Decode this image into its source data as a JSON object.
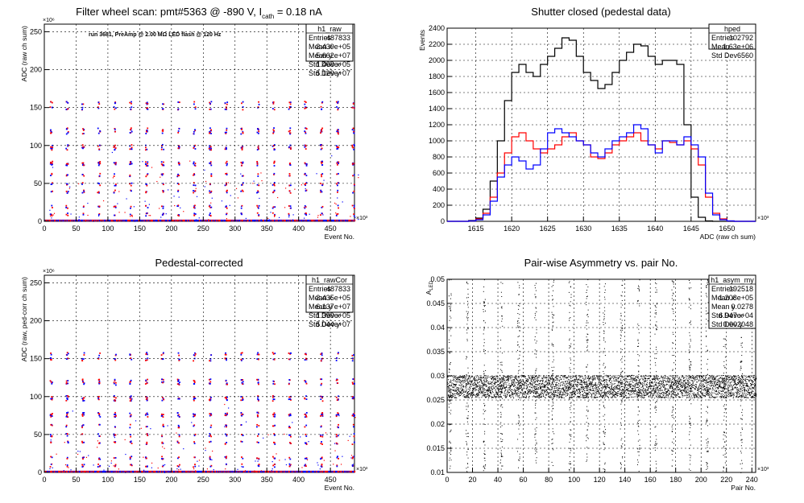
{
  "chart_data": [
    {
      "type": "scatter",
      "title": "Filter wheel scan: pmt#5363 @  -890 V, I",
      "title_sub": "cath",
      "title_tail": " = 0.18 nA",
      "annotation": "run 3681, PreAmp @ 2.00 MΩ LED flash @  120 Hz",
      "xlabel": "Event No.",
      "ylabel": "ADC (raw ch sum)",
      "xlim": [
        0,
        487833
      ],
      "ylim": [
        0,
        260000000
      ],
      "x_exponent": "×10³",
      "y_exponent": "×10⁶",
      "xticks": [
        "0",
        "50",
        "100",
        "150",
        "200",
        "250",
        "300",
        "350",
        "400",
        "450"
      ],
      "yticks": [
        "0",
        "50",
        "100",
        "150",
        "200",
        "250"
      ],
      "grid": true,
      "stats": {
        "name": "h1_raw",
        "rows": [
          [
            "Entries",
            "487833"
          ],
          [
            "Mean x",
            "2.439e+05"
          ],
          [
            "Mean y",
            "5.662e+07"
          ],
          [
            "Std Dev x",
            "1.408e+05"
          ],
          [
            "Std Dev y",
            "5.129e+07"
          ]
        ]
      },
      "levels": [
        157,
        150,
        122,
        118,
        100,
        97,
        78,
        76,
        62,
        50,
        40,
        20,
        10
      ],
      "period": 25000,
      "colors": [
        "#ff0000",
        "#0000ff"
      ]
    },
    {
      "type": "line",
      "title": "Shutter closed (pedestal data)",
      "xlabel": "ADC (raw ch sum)",
      "ylabel": "Events",
      "xlim": [
        1611,
        1654
      ],
      "ylim": [
        0,
        2400
      ],
      "x_exponent": "×10³",
      "xticks": [
        "1615",
        "1620",
        "1625",
        "1630",
        "1635",
        "1640",
        "1645",
        "1650"
      ],
      "yticks": [
        "0",
        "200",
        "400",
        "600",
        "800",
        "1000",
        "1200",
        "1400",
        "1600",
        "1800",
        "2000",
        "2200",
        "2400"
      ],
      "grid": true,
      "stats": {
        "name": "hped",
        "rows": [
          [
            "Entries",
            "102792"
          ],
          [
            "Mean",
            "1.63e+06"
          ],
          [
            "Std Dev",
            "6560"
          ]
        ]
      },
      "x": [
        1611,
        1612,
        1613,
        1614,
        1615,
        1616,
        1617,
        1618,
        1619,
        1620,
        1621,
        1622,
        1623,
        1624,
        1625,
        1626,
        1627,
        1628,
        1629,
        1630,
        1631,
        1632,
        1633,
        1634,
        1635,
        1636,
        1637,
        1638,
        1639,
        1640,
        1641,
        1642,
        1643,
        1644,
        1645,
        1646,
        1647,
        1648,
        1649,
        1650,
        1651,
        1652,
        1653,
        1654
      ],
      "series": [
        {
          "color": "#000000",
          "values": [
            0,
            0,
            0,
            10,
            40,
            150,
            500,
            1000,
            1500,
            1850,
            1950,
            1850,
            1800,
            1950,
            2050,
            2150,
            2280,
            2250,
            2050,
            1850,
            1750,
            1650,
            1700,
            1850,
            2000,
            2100,
            2200,
            2180,
            2050,
            1950,
            2000,
            2000,
            1950,
            1200,
            300,
            50,
            5,
            0,
            0,
            0,
            0,
            0,
            0,
            0
          ]
        },
        {
          "color": "#ff0000",
          "values": [
            0,
            0,
            0,
            5,
            30,
            100,
            300,
            600,
            850,
            1050,
            1100,
            1000,
            900,
            850,
            900,
            950,
            1050,
            1100,
            1000,
            950,
            800,
            780,
            850,
            950,
            1000,
            1050,
            1100,
            1000,
            950,
            900,
            1000,
            980,
            950,
            1000,
            900,
            700,
            300,
            100,
            30,
            5,
            0,
            0,
            0,
            0
          ]
        },
        {
          "color": "#0000ff",
          "values": [
            0,
            0,
            0,
            5,
            20,
            80,
            250,
            550,
            700,
            800,
            750,
            650,
            700,
            900,
            1100,
            1150,
            1100,
            1050,
            1000,
            950,
            850,
            800,
            900,
            1000,
            1050,
            1100,
            1200,
            1150,
            950,
            850,
            1000,
            1000,
            950,
            1050,
            950,
            800,
            350,
            80,
            20,
            5,
            0,
            0,
            0,
            0
          ]
        }
      ]
    },
    {
      "type": "scatter",
      "title": "Pedestal-corrected",
      "xlabel": "Event No.",
      "ylabel": "ADC (raw, ped-corr ch sum)",
      "xlim": [
        0,
        487833
      ],
      "ylim": [
        0,
        260000000
      ],
      "x_exponent": "×10³",
      "y_exponent": "×10⁶",
      "xticks": [
        "0",
        "50",
        "100",
        "150",
        "200",
        "250",
        "300",
        "350",
        "400",
        "450"
      ],
      "yticks": [
        "0",
        "50",
        "100",
        "150",
        "200",
        "250"
      ],
      "grid": true,
      "stats": {
        "name": "h1_rawCor",
        "rows": [
          [
            "Entries",
            "487833"
          ],
          [
            "Mean x",
            "2.435e+05"
          ],
          [
            "Mean y",
            "6.137e+07"
          ],
          [
            "Std Dev x",
            "1.399e+05"
          ],
          [
            "Std Dev y",
            "5.044e+07"
          ]
        ]
      },
      "levels": [
        157,
        150,
        122,
        118,
        100,
        97,
        78,
        76,
        62,
        50,
        40,
        20,
        10
      ],
      "period": 25000,
      "colors": [
        "#ff0000",
        "#0000ff"
      ]
    },
    {
      "type": "scatter",
      "title": "Pair-wise Asymmetry vs. pair No.",
      "xlabel": "Pair No.",
      "ylabel": "A_LED",
      "xlim": [
        0,
        243000
      ],
      "ylim": [
        0.01,
        0.05
      ],
      "x_exponent": "×10³",
      "xticks": [
        "0",
        "20",
        "40",
        "60",
        "80",
        "100",
        "120",
        "140",
        "160",
        "180",
        "200",
        "220",
        "240"
      ],
      "yticks": [
        "0.01",
        "0.015",
        "0.02",
        "0.025",
        "0.03",
        "0.035",
        "0.04",
        "0.045",
        "0.05"
      ],
      "grid": true,
      "stats": {
        "name": "h1_asym_my",
        "rows": [
          [
            "Entries",
            "192518"
          ],
          [
            "Mean x",
            "1.208e+05"
          ],
          [
            "Mean y",
            "0.0278"
          ],
          [
            "Std Dev x",
            "6.947e+04"
          ],
          [
            "Std Dev y",
            "0.002048"
          ]
        ]
      },
      "band": [
        0.0255,
        0.0302
      ],
      "spikes": 18,
      "color": "#000000"
    }
  ]
}
